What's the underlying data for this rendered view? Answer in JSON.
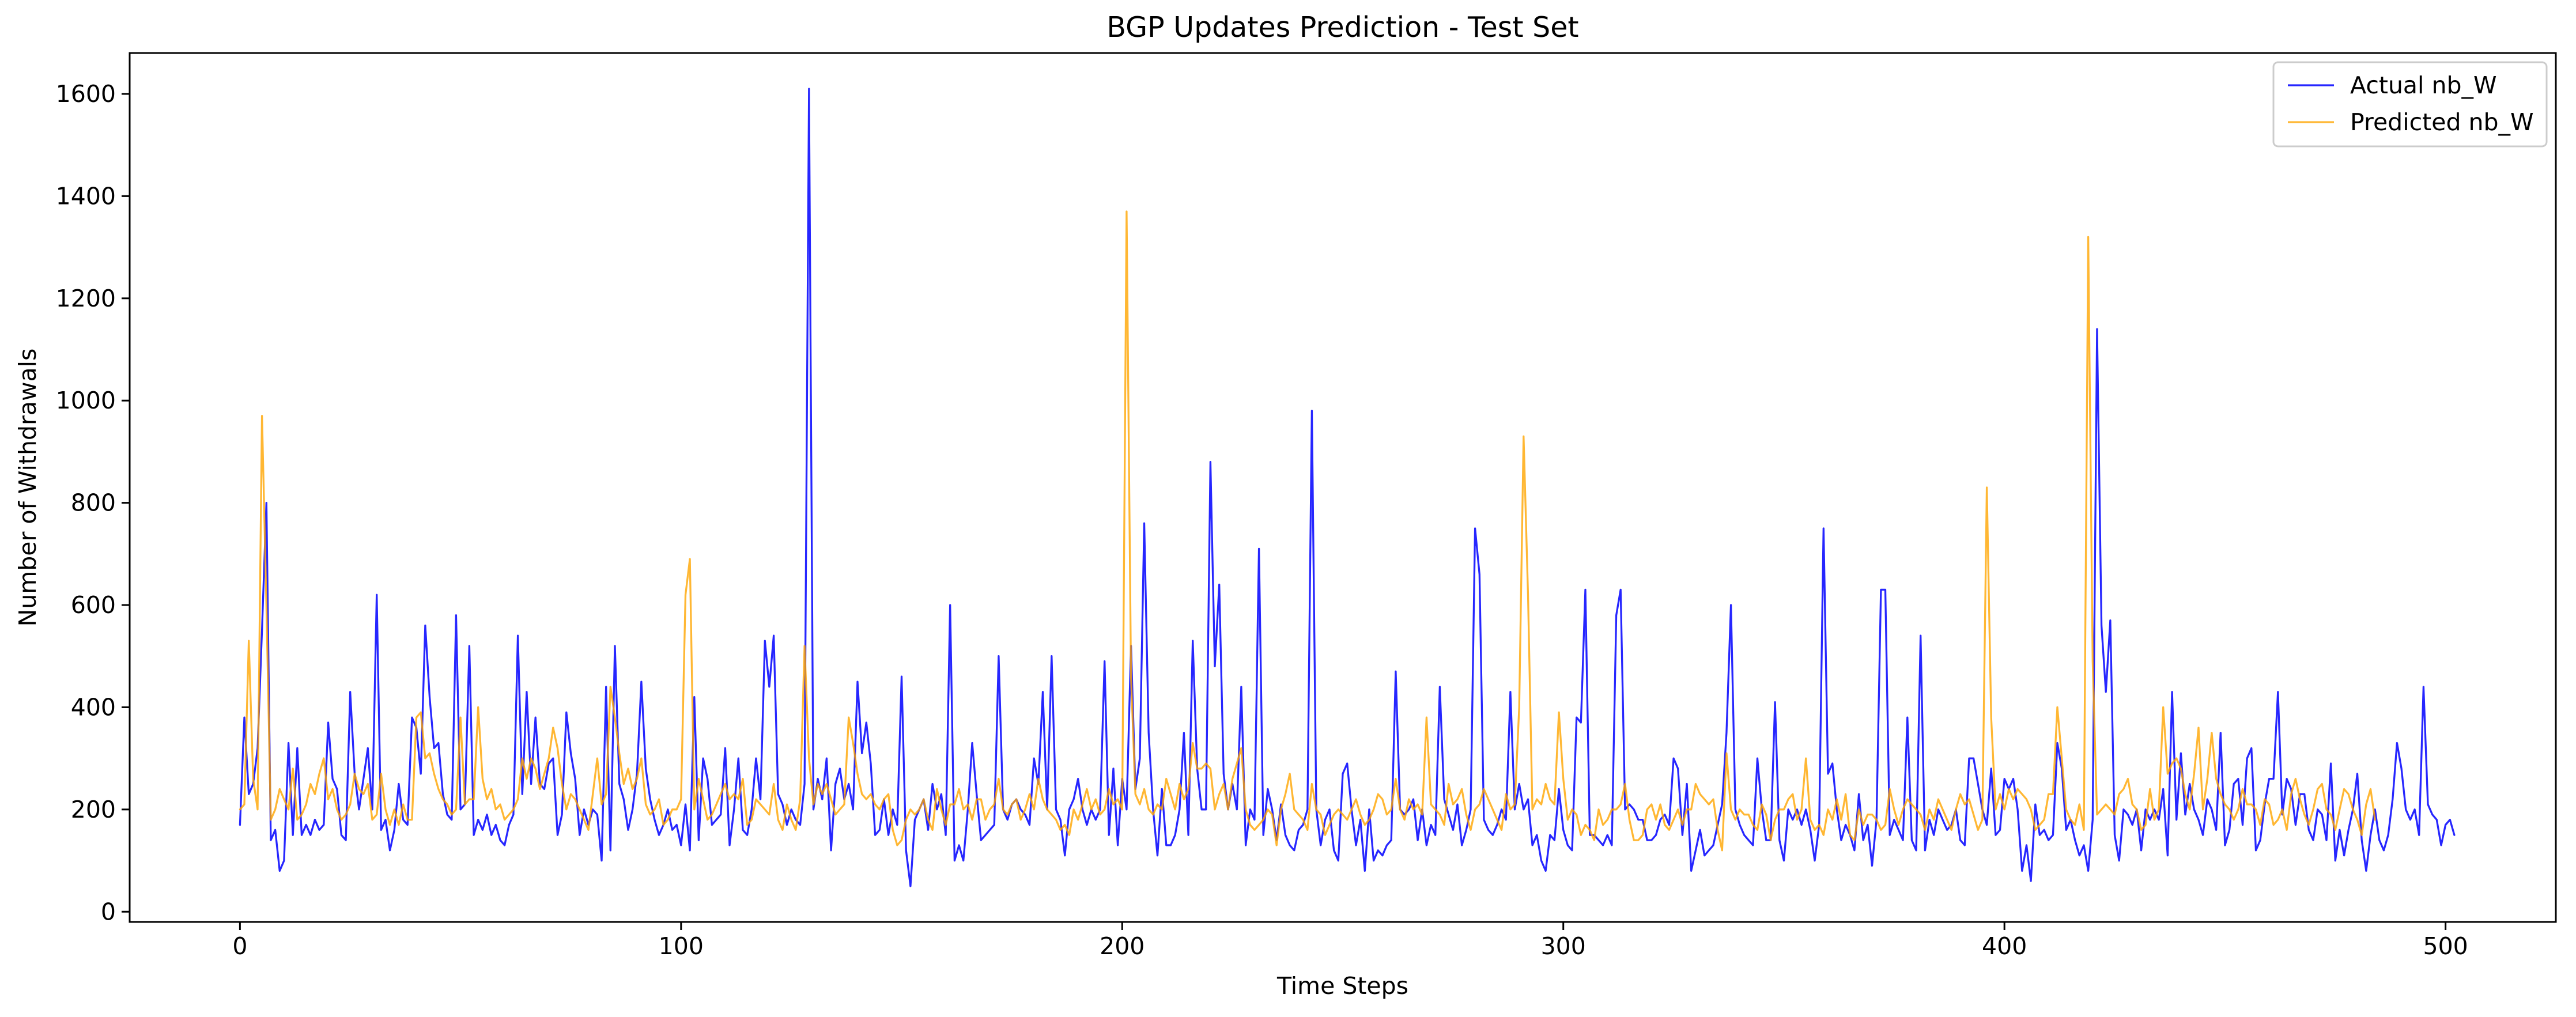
{
  "chart_data": {
    "type": "line",
    "title": "BGP Updates Prediction - Test Set",
    "xlabel": "Time Steps",
    "ylabel": "Number of Withdrawals",
    "xlim": [
      -25,
      525
    ],
    "ylim": [
      -20,
      1680
    ],
    "xticks": [
      0,
      100,
      200,
      300,
      400,
      500
    ],
    "yticks": [
      0,
      200,
      400,
      600,
      800,
      1000,
      1200,
      1400,
      1600
    ],
    "grid": false,
    "legend_position": "top-right",
    "series": [
      {
        "name": "Actual nb_W",
        "color": "#0000ff",
        "values": [
          170,
          380,
          230,
          250,
          320,
          550,
          800,
          140,
          160,
          80,
          100,
          330,
          150,
          320,
          150,
          170,
          150,
          180,
          160,
          170,
          370,
          260,
          240,
          150,
          140,
          430,
          270,
          200,
          260,
          320,
          200,
          620,
          160,
          180,
          120,
          160,
          250,
          180,
          170,
          380,
          360,
          270,
          560,
          420,
          320,
          330,
          230,
          190,
          180,
          580,
          200,
          210,
          520,
          150,
          180,
          160,
          190,
          150,
          170,
          140,
          130,
          170,
          190,
          540,
          230,
          430,
          250,
          380,
          250,
          240,
          290,
          300,
          150,
          190,
          390,
          310,
          260,
          150,
          200,
          170,
          200,
          190,
          100,
          440,
          120,
          520,
          250,
          220,
          160,
          200,
          270,
          450,
          280,
          220,
          180,
          150,
          170,
          200,
          160,
          170,
          130,
          210,
          120,
          420,
          140,
          300,
          260,
          170,
          180,
          190,
          320,
          130,
          200,
          300,
          160,
          150,
          200,
          300,
          220,
          530,
          440,
          540,
          230,
          210,
          170,
          200,
          180,
          170,
          250,
          1610,
          200,
          260,
          220,
          300,
          120,
          250,
          280,
          220,
          250,
          200,
          450,
          310,
          370,
          290,
          150,
          160,
          220,
          150,
          200,
          170,
          460,
          120,
          50,
          180,
          200,
          220,
          160,
          250,
          200,
          230,
          150,
          600,
          100,
          130,
          100,
          200,
          330,
          230,
          140,
          150,
          160,
          170,
          500,
          200,
          180,
          210,
          220,
          200,
          190,
          170,
          300,
          250,
          430,
          200,
          500,
          200,
          180,
          110,
          200,
          220,
          260,
          200,
          170,
          200,
          180,
          200,
          490,
          150,
          280,
          130,
          260,
          200,
          520,
          240,
          300,
          760,
          350,
          200,
          110,
          240,
          130,
          130,
          150,
          200,
          350,
          150,
          530,
          280,
          200,
          200,
          880,
          480,
          640,
          270,
          200,
          250,
          200,
          440,
          130,
          200,
          180,
          710,
          150,
          240,
          200,
          140,
          210,
          150,
          130,
          120,
          160,
          170,
          200,
          980,
          200,
          130,
          180,
          200,
          120,
          100,
          270,
          290,
          200,
          130,
          180,
          80,
          200,
          100,
          120,
          110,
          130,
          140,
          470,
          200,
          190,
          200,
          220,
          140,
          200,
          130,
          170,
          150,
          440,
          220,
          190,
          160,
          210,
          130,
          160,
          200,
          750,
          660,
          180,
          160,
          150,
          170,
          200,
          180,
          430,
          200,
          250,
          200,
          220,
          130,
          150,
          100,
          80,
          150,
          140,
          240,
          160,
          130,
          120,
          380,
          370,
          630,
          150,
          150,
          140,
          130,
          150,
          130,
          580,
          630,
          200,
          210,
          200,
          180,
          180,
          140,
          140,
          150,
          180,
          190,
          170,
          300,
          280,
          150,
          250,
          80,
          120,
          160,
          110,
          120,
          130,
          170,
          210,
          350,
          600,
          200,
          170,
          150,
          140,
          130,
          300,
          200,
          140,
          140,
          410,
          140,
          100,
          200,
          180,
          200,
          170,
          200,
          160,
          100,
          170,
          750,
          270,
          290,
          200,
          140,
          170,
          150,
          120,
          230,
          140,
          170,
          90,
          180,
          630,
          630,
          150,
          180,
          160,
          140,
          380,
          140,
          120,
          540,
          120,
          180,
          150,
          200,
          180,
          160,
          170,
          200,
          140,
          130,
          300,
          300,
          250,
          200,
          170,
          280,
          150,
          160,
          260,
          240,
          260,
          200,
          80,
          130,
          60,
          210,
          150,
          160,
          140,
          150,
          330,
          280,
          160,
          180,
          140,
          110,
          130,
          80,
          180,
          1140,
          560,
          430,
          570,
          150,
          100,
          200,
          190,
          170,
          200,
          120,
          200,
          180,
          200,
          180,
          240,
          110,
          430,
          180,
          310,
          190,
          250,
          200,
          180,
          150,
          220,
          200,
          160,
          350,
          130,
          160,
          250,
          260,
          170,
          300,
          320,
          120,
          140,
          210,
          260,
          260,
          430,
          190,
          260,
          240,
          170,
          230,
          230,
          160,
          140,
          200,
          190,
          140,
          290,
          100,
          160,
          110,
          160,
          200,
          270,
          140,
          80,
          150,
          200,
          140,
          120,
          150,
          220,
          330,
          280,
          200,
          180,
          200,
          150,
          440,
          210,
          190,
          180,
          130,
          170,
          180,
          150
        ]
      },
      {
        "name": "Predicted nb_W",
        "color": "#ffa500",
        "values": [
          200,
          210,
          530,
          260,
          200,
          970,
          600,
          180,
          200,
          240,
          220,
          200,
          280,
          180,
          190,
          210,
          250,
          230,
          270,
          300,
          220,
          240,
          200,
          180,
          190,
          210,
          270,
          240,
          230,
          250,
          180,
          190,
          270,
          200,
          170,
          200,
          170,
          210,
          180,
          180,
          380,
          390,
          300,
          310,
          270,
          240,
          220,
          210,
          190,
          200,
          380,
          210,
          220,
          220,
          400,
          260,
          220,
          240,
          200,
          210,
          180,
          190,
          200,
          220,
          300,
          260,
          300,
          280,
          240,
          270,
          300,
          360,
          320,
          250,
          200,
          230,
          220,
          200,
          180,
          160,
          230,
          300,
          210,
          230,
          440,
          380,
          310,
          250,
          280,
          240,
          260,
          300,
          210,
          190,
          200,
          220,
          170,
          180,
          200,
          200,
          220,
          620,
          690,
          200,
          260,
          220,
          180,
          190,
          210,
          230,
          250,
          220,
          230,
          220,
          260,
          170,
          180,
          220,
          210,
          200,
          190,
          250,
          180,
          160,
          210,
          180,
          160,
          220,
          520,
          300,
          210,
          250,
          230,
          250,
          220,
          190,
          200,
          210,
          380,
          330,
          270,
          230,
          220,
          230,
          210,
          200,
          220,
          230,
          160,
          130,
          140,
          180,
          200,
          190,
          200,
          220,
          180,
          160,
          240,
          200,
          170,
          210,
          210,
          240,
          200,
          210,
          180,
          220,
          220,
          180,
          200,
          210,
          260,
          200,
          190,
          210,
          220,
          180,
          200,
          230,
          200,
          260,
          220,
          200,
          190,
          180,
          160,
          170,
          150,
          200,
          180,
          210,
          240,
          200,
          220,
          190,
          200,
          240,
          210,
          220,
          200,
          1370,
          460,
          230,
          210,
          240,
          200,
          190,
          210,
          200,
          260,
          230,
          200,
          250,
          220,
          240,
          330,
          280,
          280,
          290,
          280,
          200,
          230,
          250,
          200,
          260,
          290,
          320,
          200,
          170,
          160,
          170,
          180,
          200,
          190,
          130,
          200,
          230,
          270,
          200,
          190,
          180,
          160,
          250,
          200,
          190,
          150,
          170,
          190,
          200,
          190,
          180,
          200,
          220,
          190,
          170,
          180,
          200,
          230,
          220,
          190,
          200,
          260,
          200,
          180,
          220,
          200,
          210,
          190,
          380,
          210,
          200,
          190,
          170,
          250,
          210,
          220,
          240,
          190,
          160,
          200,
          210,
          240,
          220,
          200,
          180,
          160,
          230,
          200,
          210,
          400,
          930,
          620,
          200,
          220,
          210,
          250,
          220,
          210,
          390,
          260,
          180,
          200,
          190,
          150,
          170,
          160,
          140,
          200,
          170,
          180,
          200,
          200,
          210,
          250,
          180,
          140,
          140,
          150,
          200,
          210,
          180,
          210,
          170,
          160,
          180,
          200,
          170,
          200,
          200,
          250,
          230,
          220,
          210,
          220,
          160,
          120,
          310,
          200,
          180,
          200,
          190,
          190,
          170,
          160,
          210,
          190,
          140,
          180,
          200,
          200,
          220,
          230,
          180,
          200,
          300,
          180,
          160,
          170,
          150,
          200,
          180,
          220,
          180,
          230,
          150,
          140,
          200,
          170,
          190,
          190,
          180,
          160,
          170,
          240,
          200,
          170,
          200,
          220,
          210,
          200,
          190,
          160,
          200,
          180,
          220,
          200,
          180,
          160,
          200,
          230,
          210,
          220,
          190,
          160,
          180,
          830,
          380,
          200,
          230,
          200,
          240,
          220,
          240,
          230,
          220,
          200,
          160,
          170,
          180,
          230,
          230,
          400,
          300,
          200,
          180,
          170,
          210,
          160,
          1320,
          490,
          190,
          200,
          210,
          200,
          190,
          230,
          240,
          260,
          210,
          200,
          160,
          170,
          240,
          180,
          200,
          400,
          270,
          290,
          300,
          280,
          230,
          200,
          270,
          360,
          200,
          260,
          350,
          260,
          230,
          210,
          200,
          180,
          200,
          240,
          210,
          210,
          200,
          170,
          220,
          210,
          170,
          180,
          200,
          160,
          230,
          260,
          220,
          190,
          170,
          200,
          240,
          250,
          200,
          190,
          160,
          200,
          240,
          230,
          200,
          180,
          150,
          210,
          240,
          180
        ]
      }
    ]
  }
}
